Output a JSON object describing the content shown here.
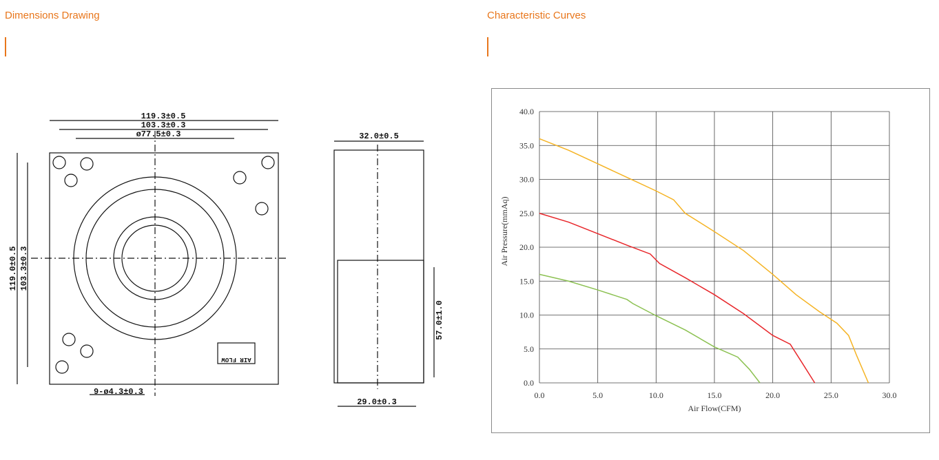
{
  "sections": [
    {
      "title": "Dimensions Drawing"
    },
    {
      "title": "Characteristic Curves"
    }
  ],
  "drawing": {
    "labels": [
      "119.3±0.5",
      "103.3±0.3",
      "ø77.5±0.3",
      "119.0±0.5",
      "103.3±0.3",
      "9-ø4.3±0.3",
      "AIR FLOW",
      "32.0±0.5",
      "57.0±1.0",
      "29.0±0.3"
    ]
  },
  "chart_data": {
    "type": "line",
    "xlabel": "Air Flow(CFM)",
    "ylabel": "Air Pressure(mmAq)",
    "xlim": [
      0,
      30
    ],
    "ylim": [
      0,
      40
    ],
    "xticks": [
      {
        "value": 0,
        "label": "0.0"
      },
      {
        "value": 5,
        "label": "5.0"
      },
      {
        "value": 10,
        "label": "10.0"
      },
      {
        "value": 15,
        "label": "15.0"
      },
      {
        "value": 20,
        "label": "20.0"
      },
      {
        "value": 25,
        "label": "25.0"
      },
      {
        "value": 30,
        "label": "30.0"
      }
    ],
    "yticks": [
      {
        "value": 0,
        "label": "0.0"
      },
      {
        "value": 5,
        "label": "5.0"
      },
      {
        "value": 10,
        "label": "10.0"
      },
      {
        "value": 15,
        "label": "15.0"
      },
      {
        "value": 20,
        "label": "20.0"
      },
      {
        "value": 25,
        "label": "25.0"
      },
      {
        "value": 30,
        "label": "30.0"
      },
      {
        "value": 35,
        "label": "35.0"
      },
      {
        "value": 40,
        "label": "40.0"
      }
    ],
    "grid": true,
    "series": [
      {
        "color": "#f5b323",
        "x": [
          0,
          2.5,
          5,
          7.5,
          10,
          11.5,
          12.5,
          15,
          17.5,
          20,
          22,
          24,
          25.5,
          26.5,
          27.2,
          28.2
        ],
        "values": [
          36,
          34.3,
          32.3,
          30.3,
          28.3,
          27,
          25,
          22.3,
          19.5,
          16,
          13,
          10.5,
          8.8,
          7,
          4,
          0
        ]
      },
      {
        "color": "#e8262a",
        "x": [
          0,
          2.5,
          5,
          7.5,
          9.5,
          10.3,
          12.5,
          15,
          17.5,
          20,
          21.5,
          22.5,
          23.6
        ],
        "values": [
          25,
          23.7,
          22,
          20.3,
          19,
          17.6,
          15.5,
          13,
          10.2,
          7,
          5.7,
          3,
          0
        ]
      },
      {
        "color": "#8cc152",
        "x": [
          0,
          2.5,
          5,
          7.5,
          8,
          10,
          12.5,
          15,
          17,
          18,
          18.9
        ],
        "values": [
          16,
          15,
          13.7,
          12.3,
          11.7,
          9.9,
          7.8,
          5.3,
          3.8,
          2,
          0
        ]
      }
    ]
  }
}
